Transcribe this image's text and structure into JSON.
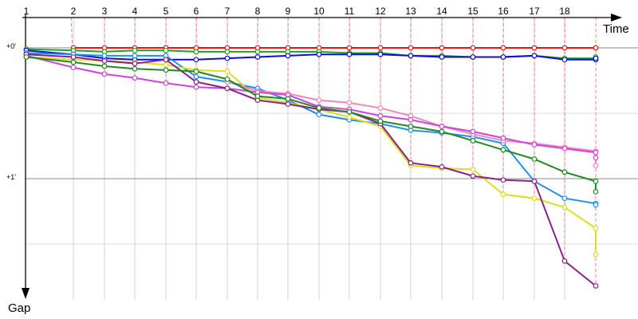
{
  "chart_data": {
    "type": "line",
    "title": "",
    "xlabel": "Time",
    "ylabel": "Gap",
    "x_ticks": [
      "1",
      "2",
      "3",
      "4",
      "5",
      "6",
      "7",
      "8",
      "9",
      "10",
      "11",
      "12",
      "13",
      "14",
      "15",
      "16",
      "17",
      "18"
    ],
    "y_ticks": [
      "+0'",
      "+1'"
    ],
    "ylim": [
      0,
      1.9
    ],
    "grid": true,
    "series": [
      {
        "color": "#ee1111",
        "points": [
          [
            1,
            0.0
          ],
          [
            2,
            0.0
          ],
          [
            3,
            0.0
          ],
          [
            4,
            0.0
          ],
          [
            5,
            0.0
          ],
          [
            6,
            0.0
          ],
          [
            7,
            0.0
          ],
          [
            8,
            0.0
          ],
          [
            9,
            0.0
          ],
          [
            10,
            0.0
          ],
          [
            11,
            0.0
          ],
          [
            12,
            0.0
          ],
          [
            13,
            0.0
          ],
          [
            14,
            0.0
          ],
          [
            15,
            0.0
          ],
          [
            16,
            0.0
          ],
          [
            17,
            0.0
          ],
          [
            18,
            0.0
          ],
          [
            19,
            0.0
          ]
        ]
      },
      {
        "color": "#22a022",
        "points": [
          [
            0,
            0.01
          ],
          [
            1,
            0.02
          ],
          [
            2,
            0.03
          ],
          [
            3,
            0.02
          ],
          [
            4,
            0.02
          ],
          [
            5,
            0.03
          ],
          [
            6,
            0.03
          ],
          [
            7,
            0.03
          ],
          [
            8,
            0.03
          ],
          [
            9,
            0.03
          ],
          [
            10,
            0.04
          ],
          [
            11,
            0.04
          ],
          [
            12,
            0.06
          ],
          [
            13,
            0.06
          ],
          [
            14,
            0.07
          ],
          [
            15,
            0.07
          ],
          [
            16,
            0.06
          ],
          [
            17,
            0.08
          ],
          [
            18,
            0.08
          ],
          [
            19,
            0.07
          ]
        ]
      },
      {
        "color": "#0d0ddd",
        "points": [
          [
            0,
            0.02
          ],
          [
            1,
            0.05
          ],
          [
            2,
            0.08
          ],
          [
            3,
            0.09
          ],
          [
            4,
            0.09
          ],
          [
            5,
            0.09
          ],
          [
            6,
            0.08
          ],
          [
            7,
            0.07
          ],
          [
            8,
            0.06
          ],
          [
            9,
            0.05
          ],
          [
            10,
            0.05
          ],
          [
            11,
            0.05
          ],
          [
            12,
            0.06
          ],
          [
            13,
            0.07
          ],
          [
            14,
            0.07
          ],
          [
            15,
            0.07
          ],
          [
            16,
            0.06
          ],
          [
            17,
            0.09
          ],
          [
            18,
            0.09
          ],
          [
            19,
            0.08
          ]
        ]
      },
      {
        "color": "#1e90ee",
        "points": [
          [
            0,
            0.04
          ],
          [
            1,
            0.05
          ],
          [
            2,
            0.06
          ],
          [
            3,
            0.06
          ],
          [
            4,
            0.06
          ],
          [
            5,
            0.22
          ],
          [
            6,
            0.26
          ],
          [
            7,
            0.31
          ],
          [
            8,
            0.4
          ],
          [
            9,
            0.51
          ],
          [
            10,
            0.55
          ],
          [
            11,
            0.58
          ],
          [
            12,
            0.63
          ],
          [
            13,
            0.65
          ],
          [
            14,
            0.68
          ],
          [
            15,
            0.73
          ],
          [
            16,
            1.02
          ],
          [
            17,
            1.15
          ],
          [
            18,
            1.19
          ],
          [
            19,
            1.2
          ]
        ]
      },
      {
        "color": "#dddd22",
        "points": [
          [
            0,
            0.07
          ],
          [
            1,
            0.09
          ],
          [
            2,
            0.1
          ],
          [
            3,
            0.11
          ],
          [
            4,
            0.13
          ],
          [
            5,
            0.17
          ],
          [
            6,
            0.18
          ],
          [
            7,
            0.38
          ],
          [
            8,
            0.42
          ],
          [
            9,
            0.47
          ],
          [
            10,
            0.53
          ],
          [
            11,
            0.6
          ],
          [
            12,
            0.9
          ],
          [
            13,
            0.92
          ],
          [
            14,
            0.93
          ],
          [
            15,
            1.12
          ],
          [
            16,
            1.15
          ],
          [
            17,
            1.22
          ],
          [
            18,
            1.38
          ],
          [
            19,
            1.58
          ]
        ]
      },
      {
        "color": "#ee88bb",
        "points": [
          [
            6,
            0.26
          ],
          [
            7,
            0.33
          ],
          [
            8,
            0.35
          ],
          [
            9,
            0.4
          ],
          [
            10,
            0.42
          ],
          [
            11,
            0.46
          ],
          [
            12,
            0.52
          ],
          [
            13,
            0.6
          ],
          [
            14,
            0.66
          ],
          [
            15,
            0.71
          ],
          [
            16,
            0.73
          ],
          [
            17,
            0.76
          ],
          [
            18,
            0.79
          ],
          [
            19,
            0.9
          ]
        ]
      },
      {
        "color": "#cc44dd",
        "points": [
          [
            0,
            0.06
          ],
          [
            1,
            0.15
          ],
          [
            2,
            0.2
          ],
          [
            3,
            0.23
          ],
          [
            4,
            0.27
          ],
          [
            5,
            0.3
          ],
          [
            6,
            0.31
          ],
          [
            7,
            0.34
          ],
          [
            8,
            0.36
          ],
          [
            9,
            0.45
          ],
          [
            10,
            0.47
          ],
          [
            11,
            0.52
          ],
          [
            12,
            0.55
          ],
          [
            13,
            0.6
          ],
          [
            14,
            0.64
          ],
          [
            15,
            0.69
          ],
          [
            16,
            0.74
          ],
          [
            17,
            0.77
          ],
          [
            18,
            0.8
          ],
          [
            19,
            0.84
          ]
        ]
      },
      {
        "color": "#882288",
        "points": [
          [
            0,
            0.05
          ],
          [
            1,
            0.07
          ],
          [
            2,
            0.1
          ],
          [
            3,
            0.12
          ],
          [
            4,
            0.09
          ],
          [
            5,
            0.26
          ],
          [
            6,
            0.31
          ],
          [
            7,
            0.4
          ],
          [
            8,
            0.43
          ],
          [
            9,
            0.47
          ],
          [
            10,
            0.49
          ],
          [
            11,
            0.58
          ],
          [
            12,
            0.88
          ],
          [
            13,
            0.91
          ],
          [
            14,
            0.98
          ],
          [
            15,
            1.01
          ],
          [
            16,
            1.02
          ],
          [
            17,
            1.63
          ],
          [
            18,
            1.82
          ]
        ]
      },
      {
        "color": "#228822",
        "points": [
          [
            0,
            0.07
          ],
          [
            1,
            0.11
          ],
          [
            2,
            0.14
          ],
          [
            3,
            0.16
          ],
          [
            4,
            0.17
          ],
          [
            5,
            0.18
          ],
          [
            6,
            0.24
          ],
          [
            7,
            0.37
          ],
          [
            8,
            0.39
          ],
          [
            9,
            0.46
          ],
          [
            10,
            0.49
          ],
          [
            11,
            0.56
          ],
          [
            12,
            0.6
          ],
          [
            13,
            0.64
          ],
          [
            14,
            0.71
          ],
          [
            15,
            0.78
          ],
          [
            16,
            0.85
          ],
          [
            17,
            0.95
          ],
          [
            18,
            1.02
          ],
          [
            19,
            1.1
          ]
        ]
      }
    ]
  }
}
